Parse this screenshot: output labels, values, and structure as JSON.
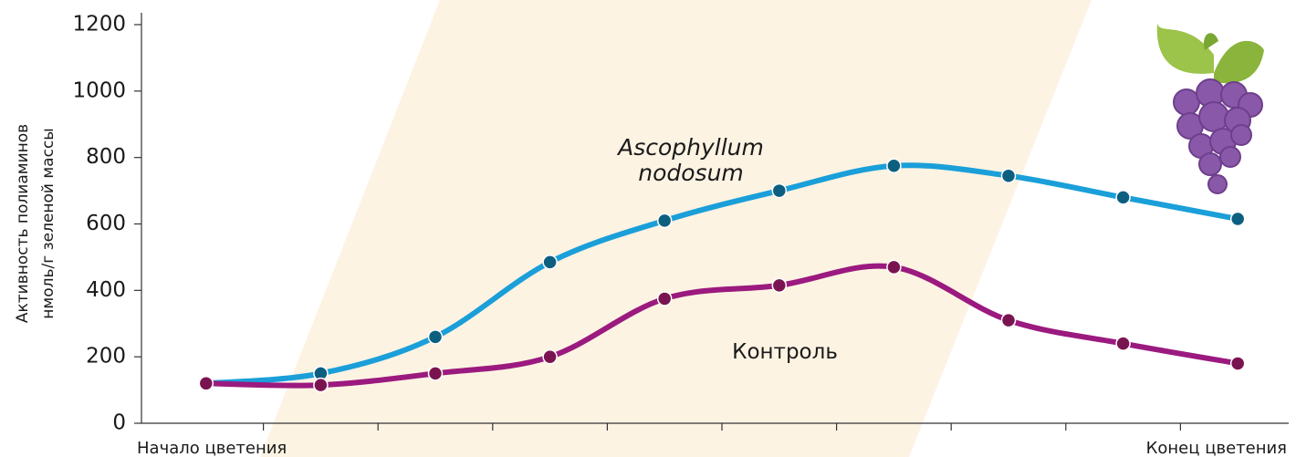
{
  "chart_data": {
    "type": "line",
    "ylabel": [
      "Активность полиаминов",
      "нмоль/г зеленой массы"
    ],
    "categories": [
      "Начало цветения",
      null,
      null,
      null,
      null,
      null,
      null,
      null,
      null,
      "Конец цветения"
    ],
    "series": [
      {
        "name": "Ascophyllum nodosum",
        "color": "#1a9fd9",
        "values": [
          120,
          150,
          260,
          485,
          610,
          700,
          775,
          745,
          680,
          615
        ]
      },
      {
        "name": "Контроль",
        "color": "#9b1a7f",
        "values": [
          120,
          115,
          150,
          200,
          375,
          415,
          470,
          310,
          240,
          180
        ]
      }
    ],
    "ylim": [
      0,
      1200
    ],
    "yticks": [
      0,
      200,
      400,
      600,
      800,
      1000,
      1200
    ]
  }
}
